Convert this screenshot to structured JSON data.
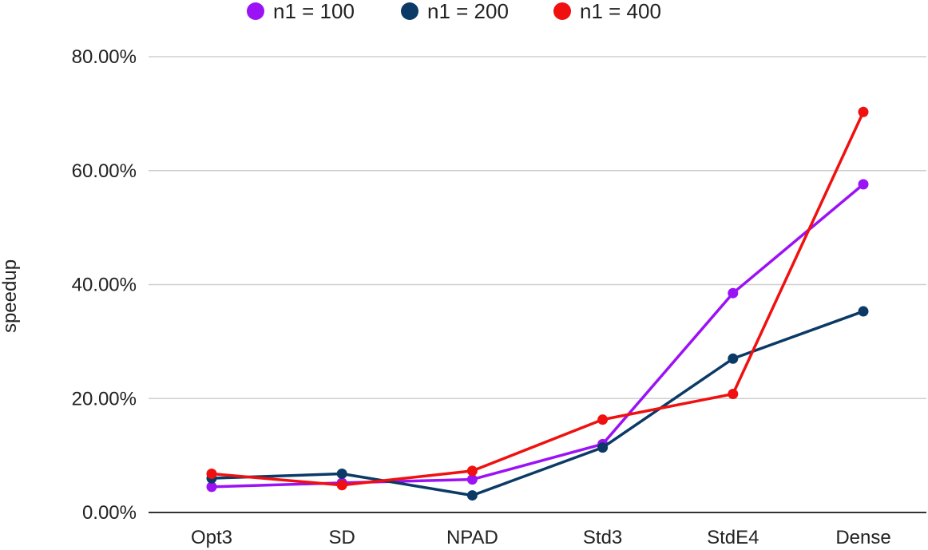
{
  "chart_data": {
    "type": "line",
    "ylabel": "speedup",
    "categories": [
      "Opt3",
      "SD",
      "NPAD",
      "Std3",
      "StdE4",
      "Dense"
    ],
    "ylim": [
      0,
      80
    ],
    "yticks": [
      0,
      20,
      40,
      60,
      80
    ],
    "ytick_labels": [
      "0.00%",
      "20.00%",
      "40.00%",
      "60.00%",
      "80.00%"
    ],
    "grid": true,
    "legend_position": "top-center",
    "series": [
      {
        "name": "n1 = 100",
        "color": "#9b12f5",
        "values": [
          4.5,
          5.2,
          5.8,
          12.0,
          38.5,
          57.6
        ]
      },
      {
        "name": "n1 = 200",
        "color": "#0b3a66",
        "values": [
          6.0,
          6.8,
          3.0,
          11.4,
          27.0,
          35.3
        ]
      },
      {
        "name": "n1 = 400",
        "color": "#f01010",
        "values": [
          6.8,
          4.8,
          7.3,
          16.3,
          20.8,
          70.3
        ]
      }
    ]
  }
}
